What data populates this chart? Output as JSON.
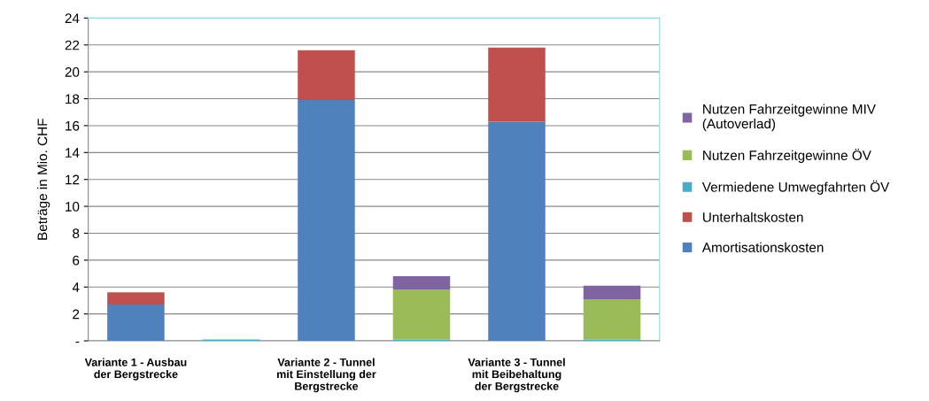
{
  "chart_data": {
    "type": "bar",
    "stacked": true,
    "ylabel": "Beträge in Mio. CHF",
    "categories": [
      "Variante 1 - Ausbau\nder Bergstrecke",
      null,
      "Variante 2 - Tunnel\nmit Einstellung der\nBergstrecke",
      null,
      "Variante 3 - Tunnel\nmit Beibehaltung\nder Bergstrecke",
      null
    ],
    "series": [
      {
        "name": "Amortisationskosten",
        "color": "#4f81bd",
        "values": [
          2.7,
          null,
          17.9,
          null,
          16.3,
          null
        ]
      },
      {
        "name": "Unterhaltskosten",
        "color": "#c0504d",
        "values": [
          0.9,
          null,
          3.7,
          null,
          5.5,
          null
        ]
      },
      {
        "name": "Vermiedene Umwegfahrten ÖV",
        "color": "#4bacc6",
        "values": [
          null,
          0.1,
          null,
          0.1,
          null,
          0.1
        ]
      },
      {
        "name": "Nutzen Fahrzeitgewinne ÖV",
        "color": "#9bbb59",
        "values": [
          null,
          0,
          null,
          3.7,
          null,
          3.0
        ]
      },
      {
        "name": "Nutzen Fahrzeitgewinne MIV\n(Autoverlad)",
        "color": "#8064a2",
        "values": [
          null,
          0,
          null,
          1.0,
          null,
          1.0
        ]
      }
    ],
    "ylim": [
      0,
      24
    ],
    "yticks": [
      {
        "value": 0,
        "label": "-"
      },
      2,
      4,
      6,
      8,
      10,
      12,
      14,
      16,
      18,
      20,
      22,
      24
    ],
    "grid": "y",
    "legend": "right"
  }
}
